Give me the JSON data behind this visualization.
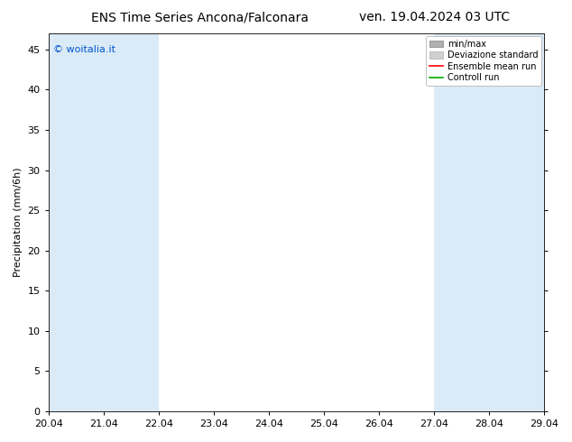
{
  "title_left": "ENS Time Series Ancona/Falconara",
  "title_right": "ven. 19.04.2024 03 UTC",
  "ylabel": "Precipitation (mm/6h)",
  "watermark": "© woitalia.it",
  "watermark_color": "#0055cc",
  "ylim": [
    0,
    47
  ],
  "yticks": [
    0,
    5,
    10,
    15,
    20,
    25,
    30,
    35,
    40,
    45
  ],
  "xtick_labels": [
    "20.04",
    "21.04",
    "22.04",
    "23.04",
    "24.04",
    "25.04",
    "26.04",
    "27.04",
    "28.04",
    "29.04"
  ],
  "bg_color": "#ffffff",
  "plot_bg_color": "#ffffff",
  "shaded_color": "#daeaf7",
  "shaded_regions": [
    {
      "xstart": 0.0,
      "xend": 2.0
    },
    {
      "xstart": 7.0,
      "xend": 9.0
    },
    {
      "xstart": 9.0,
      "xend": 10.5
    }
  ],
  "legend_labels": [
    "min/max",
    "Deviazione standard",
    "Ensemble mean run",
    "Controll run"
  ],
  "legend_colors_patch": [
    "#a0a0a0",
    "#c8c8c8"
  ],
  "legend_colors_line": [
    "#ff0000",
    "#00aa00"
  ],
  "font_size": 8,
  "title_font_size": 10,
  "ylabel_fontsize": 8
}
